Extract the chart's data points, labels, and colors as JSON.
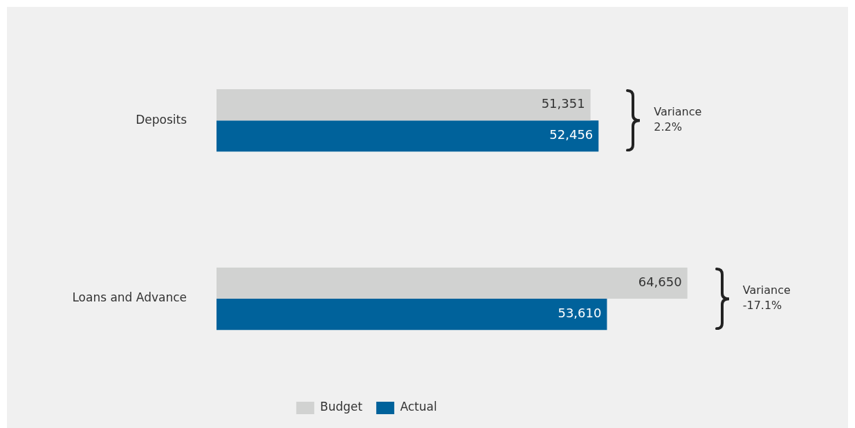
{
  "chart_data": {
    "type": "bar",
    "orientation": "horizontal",
    "categories": [
      "Deposits",
      "Loans and Advance"
    ],
    "series": [
      {
        "name": "Budget",
        "color": "#d1d2d1",
        "values": [
          51351,
          64650
        ],
        "value_labels": [
          "51,351",
          "64,650"
        ]
      },
      {
        "name": "Actual",
        "color": "#00629b",
        "values": [
          52456,
          53610
        ],
        "value_labels": [
          "52,456",
          "53,610"
        ]
      }
    ],
    "legend": "bottom",
    "tick_labels": "y",
    "annotations": [
      "Variance\n2.2%",
      "Variance\n-17.1%"
    ]
  }
}
